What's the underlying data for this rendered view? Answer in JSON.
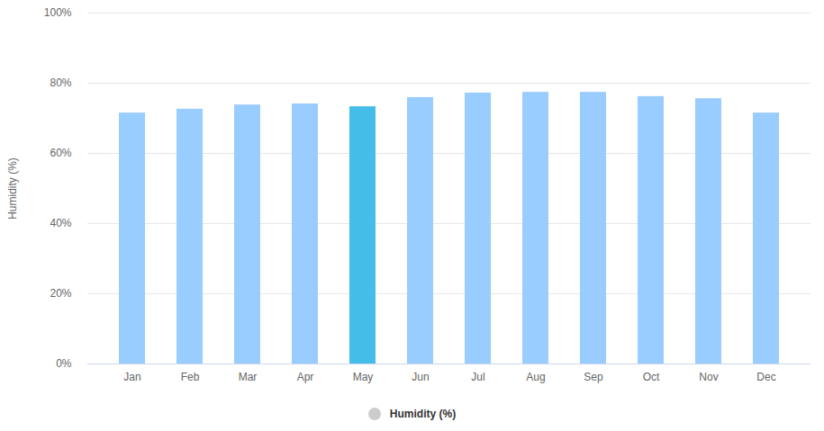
{
  "chart_data": {
    "type": "bar",
    "y_label": "Humidity (%)",
    "categories": [
      "Jan",
      "Feb",
      "Mar",
      "Apr",
      "May",
      "Jun",
      "Jul",
      "Aug",
      "Sep",
      "Oct",
      "Nov",
      "Dec"
    ],
    "series": [
      {
        "name": "Humidity (%)",
        "values": [
          71.5,
          72.6,
          73.8,
          74.1,
          73.3,
          75.9,
          77.2,
          77.4,
          77.4,
          76.2,
          75.6,
          71.5
        ],
        "colors": [
          "#99ccff",
          "#99ccff",
          "#99ccff",
          "#99ccff",
          "#45bde9",
          "#99ccff",
          "#99ccff",
          "#99ccff",
          "#99ccff",
          "#99ccff",
          "#99ccff",
          "#99ccff"
        ]
      }
    ],
    "ylim": [
      0,
      100
    ],
    "yticks": [
      {
        "value": 0,
        "label": "0%"
      },
      {
        "value": 20,
        "label": "20%"
      },
      {
        "value": 40,
        "label": "40%"
      },
      {
        "value": 60,
        "label": "60%"
      },
      {
        "value": 80,
        "label": "80%"
      },
      {
        "value": 100,
        "label": "100%"
      }
    ],
    "grid": true,
    "legend": "bottom"
  }
}
